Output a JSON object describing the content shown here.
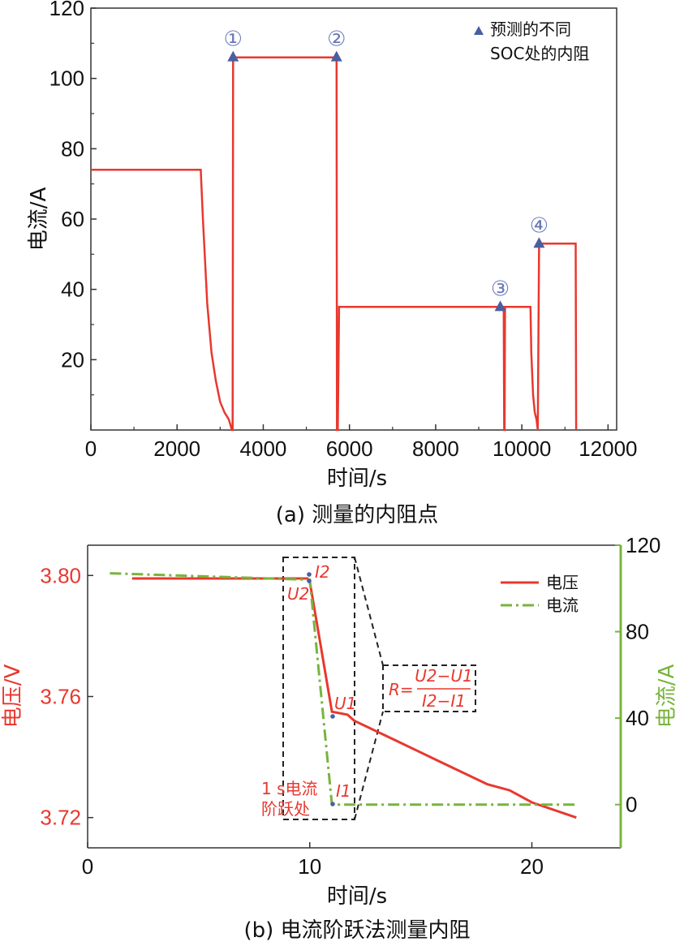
{
  "chart_data": [
    {
      "type": "line",
      "ylabel": "电流/A",
      "xlabel": "时间/s",
      "caption": "(a) 测量的内阻点",
      "xlim": [
        0,
        12200
      ],
      "ylim": [
        0,
        120
      ],
      "xticks": [
        "0",
        "2000",
        "4000",
        "6000",
        "8000",
        "10000",
        "12000"
      ],
      "yticks": [
        "20",
        "40",
        "60",
        "80",
        "100",
        "120"
      ],
      "legend": {
        "label_line1": "预测的不同",
        "label_line2": "SOC处的内阻",
        "position": "top-right"
      },
      "series": [
        {
          "color": "#e8382f",
          "points": [
            [
              0,
              74
            ],
            [
              2550,
              74
            ],
            [
              2600,
              60
            ],
            [
              2700,
              36
            ],
            [
              2800,
              22
            ],
            [
              2900,
              14
            ],
            [
              3000,
              8
            ],
            [
              3100,
              5
            ],
            [
              3200,
              3
            ],
            [
              3250,
              1
            ],
            [
              3270,
              0
            ],
            [
              3290,
              0
            ],
            [
              3300,
              106
            ],
            [
              5700,
              106
            ],
            [
              5710,
              0
            ],
            [
              5730,
              0
            ],
            [
              5760,
              35
            ],
            [
              9580,
              35
            ],
            [
              9590,
              0
            ],
            [
              9600,
              0
            ],
            [
              9610,
              35
            ],
            [
              10200,
              35
            ],
            [
              10220,
              22
            ],
            [
              10260,
              10
            ],
            [
              10300,
              5
            ],
            [
              10340,
              3
            ],
            [
              10370,
              0
            ],
            [
              10400,
              53
            ],
            [
              11250,
              53
            ],
            [
              11260,
              0
            ]
          ]
        }
      ],
      "markers": [
        {
          "label": "①",
          "x": 3300,
          "y": 106
        },
        {
          "label": "②",
          "x": 5700,
          "y": 106
        },
        {
          "label": "③",
          "x": 9500,
          "y": 35
        },
        {
          "label": "④",
          "x": 10400,
          "y": 53
        }
      ],
      "marker_color": "#4a5fa0"
    },
    {
      "type": "line",
      "xlabel": "时间/s",
      "ylabel_left": "电压/V",
      "ylabel_right": "电流/A",
      "caption": "(b) 电流阶跃法测量内阻",
      "xlim": [
        0,
        24
      ],
      "ylim_left": [
        3.71,
        3.81
      ],
      "ylim_right": [
        -20,
        120
      ],
      "xticks": [
        "0",
        "10",
        "20"
      ],
      "yticks_left": [
        "3.72",
        "3.76",
        "3.80"
      ],
      "yticks_right": [
        "0",
        "40",
        "80",
        "120"
      ],
      "legend": {
        "entries": [
          "电压",
          "电流"
        ],
        "position": "top-right"
      },
      "series": [
        {
          "name": "电压",
          "axis": "left",
          "color": "#e8382f",
          "style": "solid",
          "points": [
            [
              2,
              3.799
            ],
            [
              9.9,
              3.799
            ],
            [
              10,
              3.798
            ],
            [
              11,
              3.755
            ],
            [
              11.7,
              3.754
            ],
            [
              12,
              3.752
            ],
            [
              14,
              3.745
            ],
            [
              16,
              3.738
            ],
            [
              18,
              3.731
            ],
            [
              19,
              3.729
            ],
            [
              20,
              3.725
            ],
            [
              22,
              3.72
            ]
          ]
        },
        {
          "name": "电流",
          "axis": "right",
          "color": "#78b43c",
          "style": "dashdot",
          "points": [
            [
              1,
              107
            ],
            [
              10,
              104
            ],
            [
              11,
              0
            ],
            [
              12,
              0
            ],
            [
              22,
              0
            ]
          ]
        }
      ],
      "annotations": {
        "I2": "I2",
        "U2": "U2",
        "U1": "U1",
        "I1": "I1",
        "formula_R": "R=",
        "formula_num": "U2−U1",
        "formula_den": "I2−I1",
        "step_line1": "1 s电流",
        "step_line2": "阶跃处"
      }
    }
  ]
}
